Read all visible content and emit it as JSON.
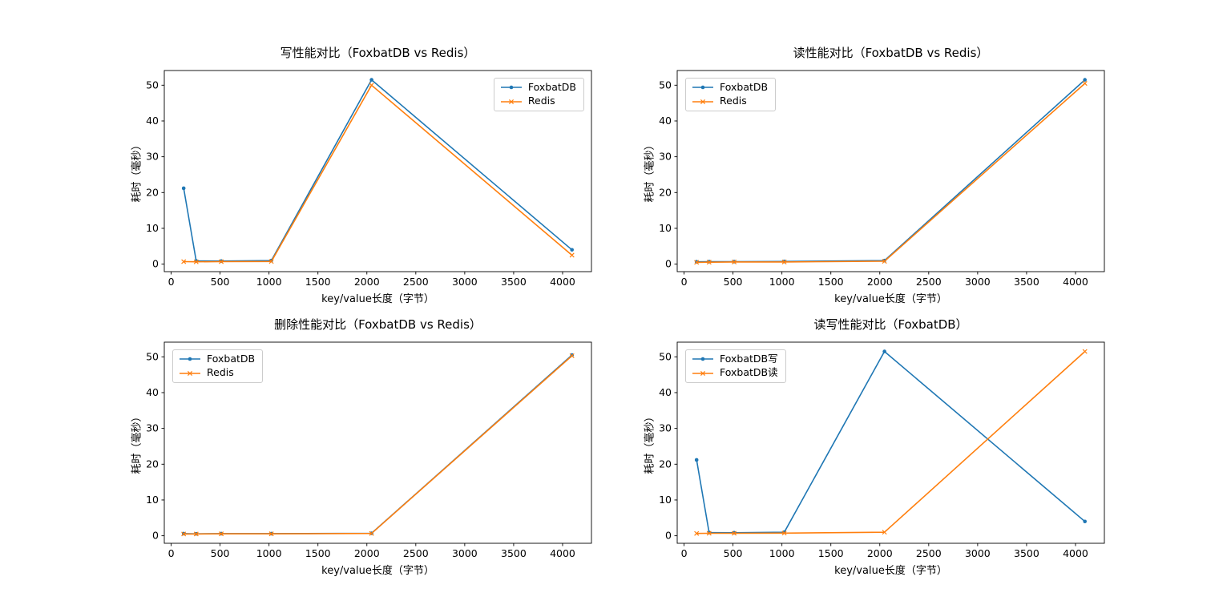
{
  "figure": {
    "background": "#ffffff",
    "text_color": "#000000"
  },
  "colors": {
    "foxbatdb_blue": "#1f77b4",
    "redis_orange": "#ff7f0e",
    "axes_edge": "#000000",
    "legend_border": "#cccccc"
  },
  "chart_data": [
    {
      "type": "line",
      "title": "写性能对比（FoxbatDB vs Redis）",
      "xlabel": "key/value长度（字节）",
      "ylabel": "耗时（毫秒）",
      "x": [
        128,
        256,
        512,
        1024,
        2048,
        4096
      ],
      "series": [
        {
          "name": "FoxbatDB",
          "color": "#1f77b4",
          "marker": "circle",
          "values": [
            21.2,
            0.9,
            0.85,
            1.0,
            51.5,
            4.0
          ]
        },
        {
          "name": "Redis",
          "color": "#ff7f0e",
          "marker": "x",
          "values": [
            0.7,
            0.65,
            0.7,
            0.75,
            50.0,
            2.5
          ]
        }
      ],
      "xticks": [
        0,
        500,
        1000,
        1500,
        2000,
        2500,
        3000,
        3500,
        4000
      ],
      "yticks": [
        0,
        10,
        20,
        30,
        40,
        50
      ],
      "xlim": [
        -70,
        4295
      ],
      "ylim": [
        -2.1,
        54.1
      ],
      "grid": false,
      "legend_position": "top-right"
    },
    {
      "type": "line",
      "title": "读性能对比（FoxbatDB vs Redis）",
      "xlabel": "key/value长度（字节）",
      "ylabel": "耗时（毫秒）",
      "x": [
        128,
        256,
        512,
        1024,
        2048,
        4096
      ],
      "series": [
        {
          "name": "FoxbatDB",
          "color": "#1f77b4",
          "marker": "circle",
          "values": [
            0.65,
            0.7,
            0.7,
            0.75,
            1.0,
            51.5
          ]
        },
        {
          "name": "Redis",
          "color": "#ff7f0e",
          "marker": "x",
          "values": [
            0.5,
            0.55,
            0.6,
            0.6,
            0.8,
            50.5
          ]
        }
      ],
      "xticks": [
        0,
        500,
        1000,
        1500,
        2000,
        2500,
        3000,
        3500,
        4000
      ],
      "yticks": [
        0,
        10,
        20,
        30,
        40,
        50
      ],
      "xlim": [
        -70,
        4295
      ],
      "ylim": [
        -2.1,
        54.1
      ],
      "grid": false,
      "legend_position": "top-left"
    },
    {
      "type": "line",
      "title": "删除性能对比（FoxbatDB vs Redis）",
      "xlabel": "key/value长度（字节）",
      "ylabel": "耗时（毫秒）",
      "x": [
        128,
        256,
        512,
        1024,
        2048,
        4096
      ],
      "series": [
        {
          "name": "FoxbatDB",
          "color": "#1f77b4",
          "marker": "circle",
          "values": [
            0.6,
            0.55,
            0.6,
            0.6,
            0.7,
            50.5
          ]
        },
        {
          "name": "Redis",
          "color": "#ff7f0e",
          "marker": "x",
          "values": [
            0.5,
            0.5,
            0.55,
            0.55,
            0.65,
            50.3
          ]
        }
      ],
      "xticks": [
        0,
        500,
        1000,
        1500,
        2000,
        2500,
        3000,
        3500,
        4000
      ],
      "yticks": [
        0,
        10,
        20,
        30,
        40,
        50
      ],
      "xlim": [
        -70,
        4295
      ],
      "ylim": [
        -2.1,
        54.1
      ],
      "grid": false,
      "legend_position": "top-left"
    },
    {
      "type": "line",
      "title": "读写性能对比（FoxbatDB）",
      "xlabel": "key/value长度（字节）",
      "ylabel": "耗时（毫秒）",
      "x": [
        128,
        256,
        512,
        1024,
        2048,
        4096
      ],
      "series": [
        {
          "name": "FoxbatDB写",
          "color": "#1f77b4",
          "marker": "circle",
          "values": [
            21.2,
            0.9,
            0.85,
            1.0,
            51.5,
            4.0
          ]
        },
        {
          "name": "FoxbatDB读",
          "color": "#ff7f0e",
          "marker": "x",
          "values": [
            0.65,
            0.7,
            0.7,
            0.75,
            1.0,
            51.5
          ]
        }
      ],
      "xticks": [
        0,
        500,
        1000,
        1500,
        2000,
        2500,
        3000,
        3500,
        4000
      ],
      "yticks": [
        0,
        10,
        20,
        30,
        40,
        50
      ],
      "xlim": [
        -70,
        4295
      ],
      "ylim": [
        -2.1,
        54.1
      ],
      "grid": false,
      "legend_position": "top-left"
    }
  ]
}
